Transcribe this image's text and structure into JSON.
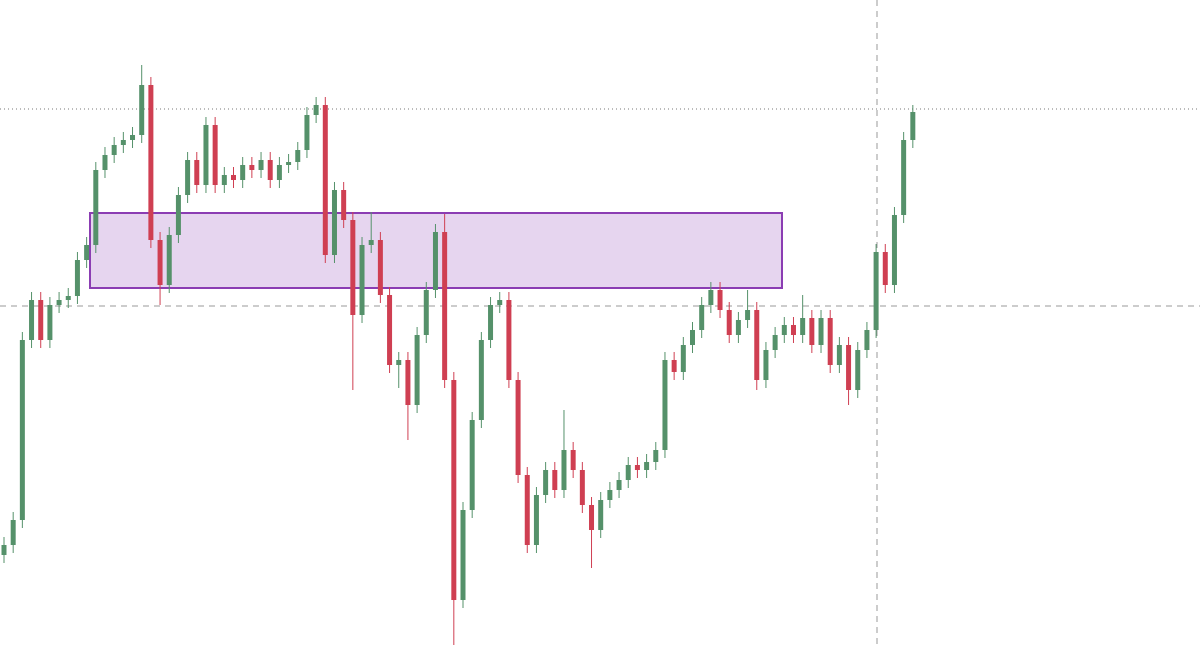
{
  "chart_data": {
    "type": "candlestick",
    "categories": [
      null,
      null,
      null,
      null,
      null,
      null,
      null,
      null,
      null,
      null,
      null,
      null,
      null,
      null,
      null,
      null,
      null,
      null,
      null,
      null,
      null,
      null,
      null,
      null,
      null,
      null,
      null,
      null,
      null,
      null,
      null,
      null,
      null,
      null,
      null,
      null,
      null,
      null,
      null,
      null,
      null,
      null,
      null,
      null,
      null,
      null,
      null,
      null,
      null,
      null,
      null,
      null,
      null,
      null,
      null,
      null,
      null,
      null,
      null,
      null,
      null,
      null,
      null,
      null,
      null,
      null,
      null,
      null,
      null,
      null,
      null,
      null,
      null,
      null,
      null,
      null,
      null,
      null,
      null,
      null,
      null,
      null,
      null,
      null,
      null,
      null,
      null,
      null,
      null,
      null,
      null,
      null,
      null,
      null,
      null,
      null,
      null,
      null,
      null,
      null
    ],
    "open": [
      93,
      103,
      128,
      308,
      348,
      308,
      343,
      348,
      352,
      388,
      403,
      478,
      493,
      503,
      508,
      513,
      563,
      408,
      363,
      413,
      453,
      488,
      463,
      523,
      463,
      473,
      468,
      483,
      478,
      488,
      468,
      483,
      486,
      498,
      533,
      543,
      393,
      458,
      428,
      333,
      403,
      408,
      353,
      283,
      288,
      243,
      313,
      358,
      416,
      268,
      48,
      138,
      228,
      308,
      343,
      348,
      268,
      173,
      103,
      153,
      178,
      158,
      198,
      178,
      143,
      118,
      148,
      158,
      168,
      183,
      178,
      186,
      198,
      288,
      276,
      303,
      318,
      343,
      358,
      338,
      313,
      328,
      338,
      268,
      298,
      313,
      323,
      313,
      330,
      303,
      330,
      283,
      303,
      258,
      298,
      318,
      396,
      363,
      433,
      508
    ],
    "high": [
      111,
      136,
      316,
      356,
      356,
      351,
      356,
      360,
      396,
      411,
      486,
      501,
      511,
      516,
      521,
      583,
      571,
      416,
      421,
      461,
      496,
      496,
      531,
      531,
      481,
      481,
      491,
      491,
      496,
      496,
      491,
      494,
      506,
      541,
      551,
      551,
      466,
      466,
      436,
      411,
      436,
      416,
      361,
      296,
      296,
      321,
      366,
      424,
      434,
      276,
      146,
      236,
      316,
      351,
      356,
      356,
      276,
      181,
      161,
      186,
      186,
      238,
      206,
      186,
      151,
      156,
      166,
      176,
      191,
      191,
      194,
      206,
      296,
      296,
      311,
      326,
      351,
      366,
      366,
      346,
      336,
      358,
      346,
      306,
      321,
      331,
      331,
      353,
      338,
      338,
      338,
      311,
      311,
      306,
      326,
      404,
      404,
      441,
      516,
      543
    ],
    "low": [
      85,
      95,
      120,
      300,
      300,
      300,
      335,
      340,
      344,
      380,
      395,
      470,
      485,
      495,
      500,
      505,
      400,
      343,
      355,
      405,
      445,
      455,
      455,
      455,
      455,
      460,
      460,
      470,
      470,
      460,
      460,
      475,
      478,
      490,
      525,
      385,
      385,
      420,
      258,
      325,
      395,
      345,
      275,
      260,
      208,
      235,
      305,
      350,
      260,
      3,
      40,
      130,
      220,
      300,
      335,
      260,
      165,
      95,
      95,
      145,
      150,
      150,
      170,
      135,
      80,
      110,
      140,
      150,
      160,
      170,
      170,
      178,
      190,
      268,
      268,
      295,
      310,
      335,
      330,
      305,
      305,
      320,
      258,
      260,
      290,
      305,
      305,
      305,
      295,
      295,
      275,
      275,
      243,
      250,
      290,
      310,
      355,
      355,
      425,
      500
    ],
    "close": [
      103,
      128,
      308,
      348,
      308,
      343,
      348,
      352,
      388,
      403,
      478,
      493,
      503,
      508,
      513,
      563,
      408,
      363,
      413,
      453,
      488,
      463,
      523,
      463,
      473,
      468,
      483,
      478,
      488,
      468,
      483,
      486,
      498,
      533,
      543,
      393,
      458,
      428,
      333,
      403,
      408,
      353,
      283,
      288,
      243,
      313,
      358,
      416,
      268,
      48,
      138,
      228,
      308,
      343,
      348,
      268,
      173,
      103,
      153,
      178,
      158,
      198,
      178,
      143,
      118,
      148,
      158,
      168,
      183,
      178,
      186,
      198,
      288,
      276,
      303,
      318,
      343,
      358,
      338,
      313,
      328,
      338,
      268,
      298,
      313,
      323,
      313,
      330,
      303,
      330,
      283,
      303,
      258,
      298,
      318,
      396,
      363,
      433,
      508,
      536
    ],
    "up_color": "#55916a",
    "down_color": "#cf3f52",
    "zone": {
      "low": 360,
      "high": 435,
      "fill": "#e6d5ef",
      "stroke": "#8b3db3"
    },
    "price_line": 539,
    "crosshair_y": 342,
    "ylim": [
      0,
      648
    ]
  }
}
